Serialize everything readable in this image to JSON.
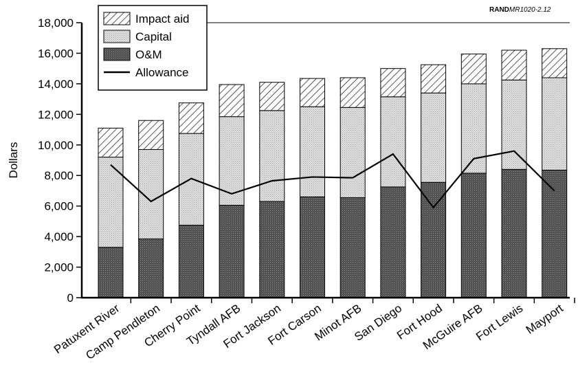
{
  "source_note": {
    "org": "RAND",
    "doc": "MR1020-2.12"
  },
  "chart_data": {
    "type": "bar",
    "stacked": true,
    "ylabel": "Dollars",
    "xlabel": "",
    "ylim": [
      0,
      18000
    ],
    "yticks": [
      0,
      2000,
      4000,
      6000,
      8000,
      10000,
      12000,
      14000,
      16000,
      18000
    ],
    "ytick_labels": [
      "0",
      "2,000",
      "4,000",
      "6,000",
      "8,000",
      "10,000",
      "12,000",
      "14,000",
      "16,000",
      "18,000"
    ],
    "grid": false,
    "legend_position": "top-left",
    "categories": [
      "Patuxent River",
      "Camp Pendleton",
      "Cherry Point",
      "Tyndall AFB",
      "Fort Jackson",
      "Fort Carson",
      "Minot AFB",
      "San Diego",
      "Fort Hood",
      "McGuire AFB",
      "Fort Lewis",
      "Mayport"
    ],
    "series": [
      {
        "name": "O&M",
        "kind": "bar",
        "color": "#555555",
        "values": [
          3300,
          3850,
          4750,
          6050,
          6300,
          6600,
          6550,
          7250,
          7550,
          8150,
          8400,
          8350
        ]
      },
      {
        "name": "Capital",
        "kind": "bar",
        "color": "#d6d6d6",
        "values": [
          5900,
          5850,
          6000,
          5800,
          5950,
          5900,
          5900,
          5900,
          5850,
          5850,
          5850,
          6050
        ]
      },
      {
        "name": "Impact aid",
        "kind": "bar",
        "color": "#ffffff",
        "values": [
          1900,
          1900,
          2000,
          2100,
          1850,
          1850,
          1950,
          1850,
          1850,
          1950,
          1950,
          1900
        ]
      },
      {
        "name": "Allowance",
        "kind": "line",
        "color": "#000000",
        "values": [
          8700,
          6300,
          7800,
          6800,
          7650,
          7900,
          7850,
          9400,
          5900,
          9100,
          9600,
          7000
        ]
      }
    ],
    "legend_order": [
      "Impact aid",
      "Capital",
      "O&M",
      "Allowance"
    ]
  }
}
